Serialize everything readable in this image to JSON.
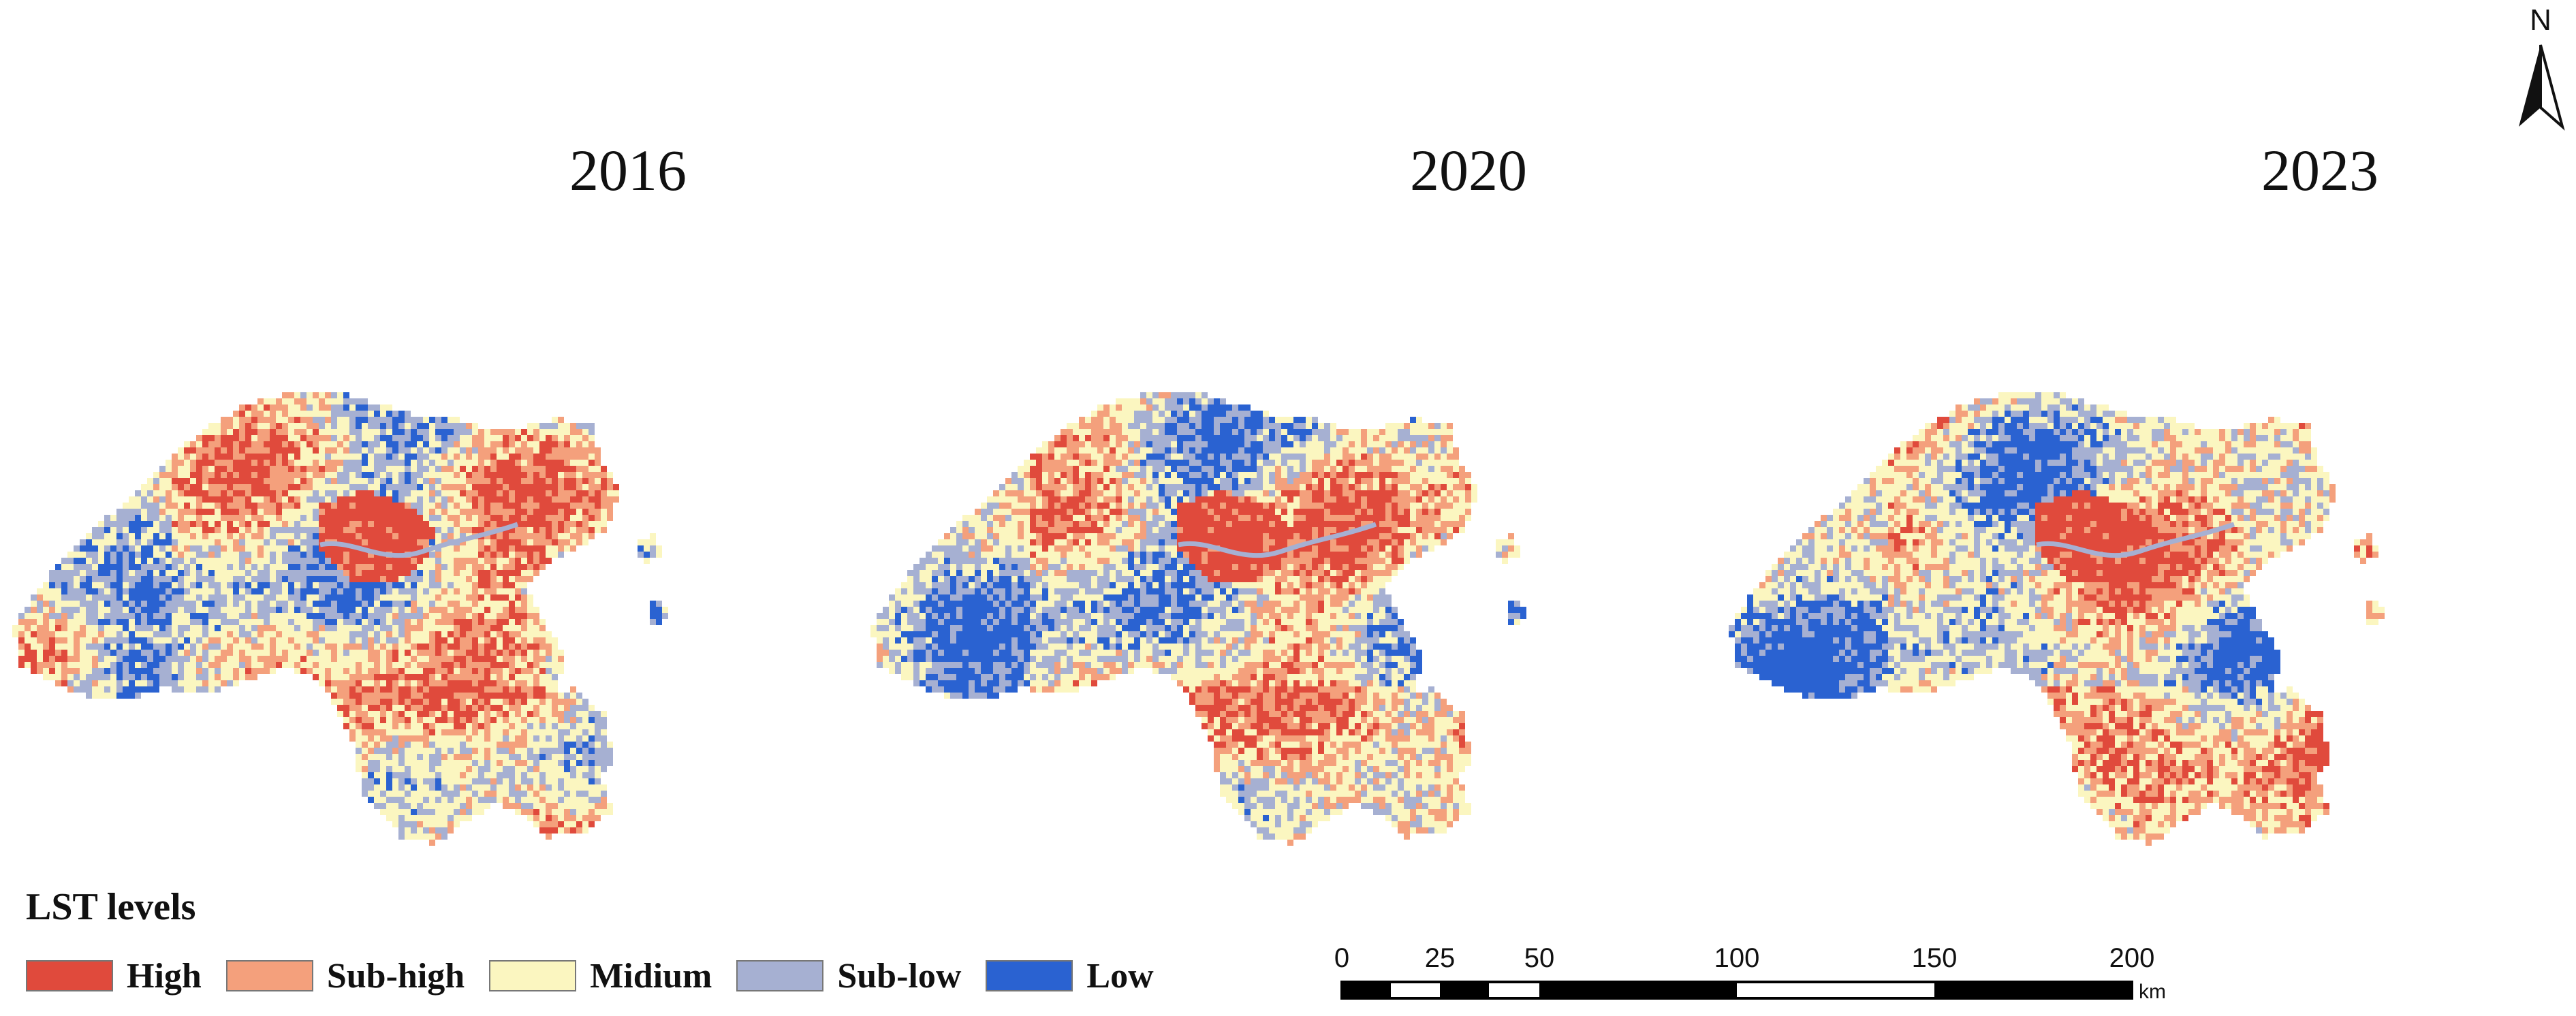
{
  "years": [
    "2016",
    "2020",
    "2023"
  ],
  "legend": {
    "title": "LST levels",
    "items": [
      {
        "label": "High",
        "color": "#e04a3c"
      },
      {
        "label": "Sub-high",
        "color": "#f4a07c"
      },
      {
        "label": "Midium",
        "color": "#fbf6c0"
      },
      {
        "label": "Sub-low",
        "color": "#a6b0d2"
      },
      {
        "label": "Low",
        "color": "#2a62d1"
      }
    ]
  },
  "north_arrow": {
    "label": "N"
  },
  "scale_bar": {
    "ticks": [
      "0",
      "25",
      "50",
      "100",
      "150",
      "200"
    ],
    "unit": "km"
  }
}
